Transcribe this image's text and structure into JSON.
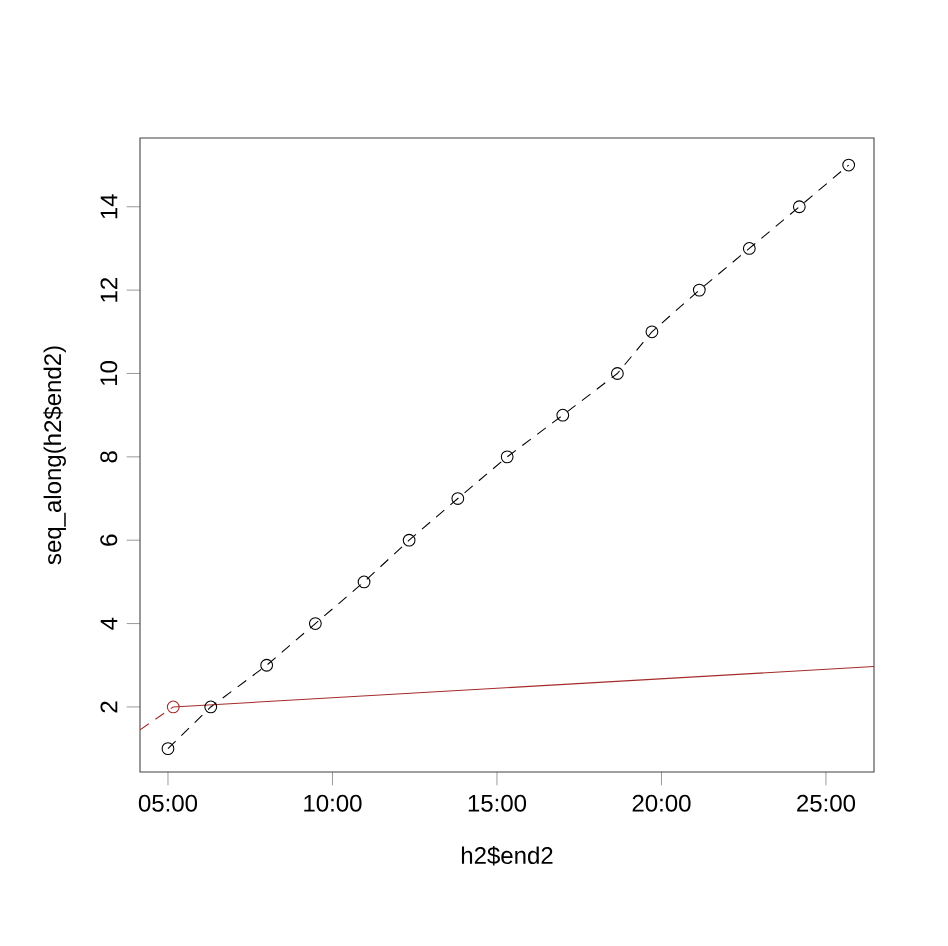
{
  "chart_data": {
    "type": "line",
    "xlabel": "h2$end2",
    "ylabel": "seq_along(h2$end2)",
    "xlim": [
      4.15,
      26.46
    ],
    "ylim": [
      0.44,
      15.65
    ],
    "xticks": [
      {
        "value": 5,
        "label": "05:00"
      },
      {
        "value": 10,
        "label": "10:00"
      },
      {
        "value": 15,
        "label": "15:00"
      },
      {
        "value": 20,
        "label": "20:00"
      },
      {
        "value": 25,
        "label": "25:00"
      }
    ],
    "yticks": [
      2,
      4,
      6,
      8,
      10,
      12,
      14
    ],
    "grid": false,
    "series": [
      {
        "color": "#000000",
        "marker": "circle",
        "line_style": "dashed",
        "x": [
          5.0,
          6.3,
          8.0,
          9.48,
          10.96,
          12.33,
          13.81,
          15.31,
          17.0,
          18.66,
          19.71,
          21.15,
          22.67,
          24.19,
          25.69
        ],
        "values": [
          1,
          2,
          3,
          4,
          5,
          6,
          7,
          8,
          9,
          10,
          11,
          12,
          13,
          14,
          15
        ]
      },
      {
        "type": "line",
        "color": "#a52a2a",
        "marker": "none",
        "line_style": "dashed",
        "x": [
          4.15,
          5.16
        ],
        "values": [
          1.45,
          2.0
        ]
      },
      {
        "type": "scatter",
        "color": "#a52a2a",
        "marker": "circle",
        "x": [
          5.16
        ],
        "values": [
          2.0
        ]
      },
      {
        "type": "line",
        "color": "#a52a2a",
        "marker": "none",
        "line_style": "solid",
        "x": [
          5.16,
          26.46
        ],
        "values": [
          2.0,
          2.97
        ]
      }
    ]
  }
}
